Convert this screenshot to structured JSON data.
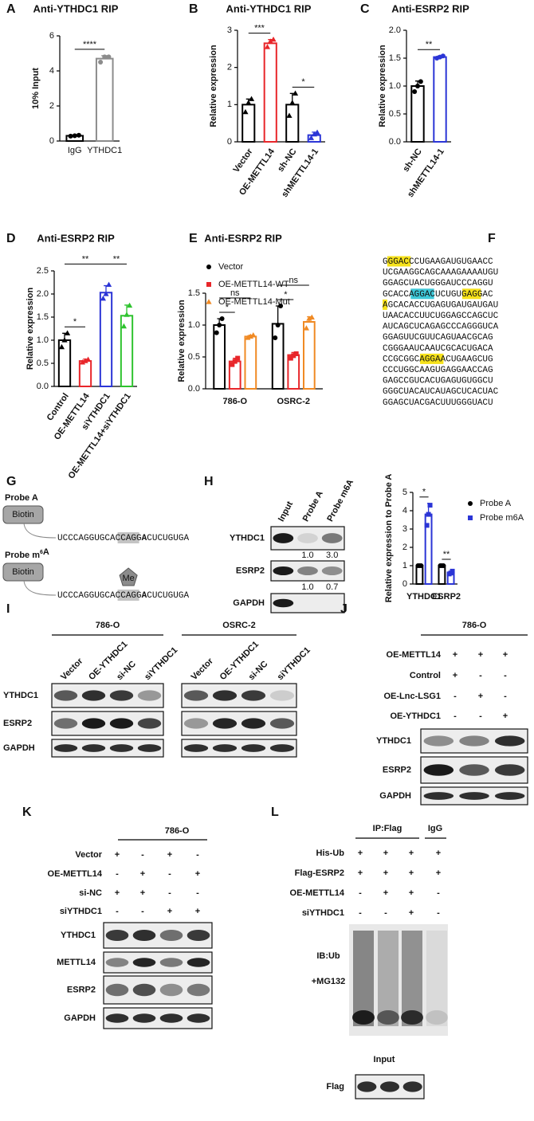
{
  "chart_data": [
    {
      "type": "bar",
      "label": "A",
      "title": "Anti-YTHDC1 RIP",
      "ylabel": "10% Input",
      "categories": [
        "IgG",
        "YTHDC1"
      ],
      "values": [
        0.3,
        4.7
      ],
      "errors": [
        0.03,
        0.17
      ],
      "points": [
        [
          0.28,
          0.3,
          0.33
        ],
        [
          4.5,
          4.8,
          4.8
        ]
      ],
      "colors": [
        "#000000",
        "#8c8c8c"
      ],
      "marker": "circle",
      "ylim": [
        0,
        6
      ],
      "yticks": [
        0,
        2,
        4,
        6
      ],
      "significance": [
        {
          "pair": [
            0,
            1
          ],
          "label": "****"
        }
      ]
    },
    {
      "type": "bar",
      "label": "B",
      "title": "Anti-YTHDC1 RIP",
      "ylabel": "Relative expression",
      "categories": [
        "Vector",
        "OE-METTL14",
        "sh-NC",
        "shMETTL14-1"
      ],
      "values": [
        1.0,
        2.65,
        1.0,
        0.18
      ],
      "errors": [
        0.15,
        0.1,
        0.3,
        0.08
      ],
      "points": [
        [
          0.8,
          1.05,
          1.15
        ],
        [
          2.55,
          2.7,
          2.75
        ],
        [
          0.7,
          1.05,
          1.3
        ],
        [
          0.1,
          0.2,
          0.25
        ]
      ],
      "colors": [
        "#000000",
        "#e8262a",
        "#000000",
        "#2b35d6"
      ],
      "marker": "triangle",
      "rotated_labels": true,
      "ylim": [
        0,
        3
      ],
      "yticks": [
        0,
        1,
        2,
        3
      ],
      "significance": [
        {
          "pair": [
            0,
            1
          ],
          "label": "***"
        },
        {
          "pair": [
            2,
            3
          ],
          "label": "*"
        }
      ]
    },
    {
      "type": "bar",
      "label": "C",
      "title": "Anti-ESRP2 RIP",
      "ylabel": "Relative expression",
      "categories": [
        "sh-NC",
        "shMETTL14-1"
      ],
      "values": [
        1.0,
        1.52
      ],
      "errors": [
        0.09,
        0.02
      ],
      "points": [
        [
          0.9,
          1.0,
          1.08
        ],
        [
          1.5,
          1.52,
          1.54
        ]
      ],
      "colors": [
        "#000000",
        "#2b35d6"
      ],
      "marker": "circle",
      "rotated_labels": true,
      "ylim": [
        0,
        2
      ],
      "yticks": [
        {
          "value": 0,
          "label": "0.0"
        },
        {
          "value": 0.5,
          "label": "0.5"
        },
        {
          "value": 1,
          "label": "1.0"
        },
        {
          "value": 1.5,
          "label": "1.5"
        },
        {
          "value": 2,
          "label": "2.0"
        }
      ],
      "significance": [
        {
          "pair": [
            0,
            1
          ],
          "label": "**"
        }
      ]
    },
    {
      "type": "bar",
      "label": "D",
      "title": "Anti-ESRP2 RIP",
      "ylabel": "Relative expression",
      "categories": [
        "Control",
        "OE-METTL14",
        "siYTHDC1",
        "OE-METTL14+siYTHDC1"
      ],
      "values": [
        1.0,
        0.55,
        2.03,
        1.53
      ],
      "errors": [
        0.15,
        0.04,
        0.15,
        0.23
      ],
      "points": [
        [
          0.85,
          1.0,
          1.15
        ],
        [
          0.52,
          0.55,
          0.58
        ],
        [
          1.9,
          2.0,
          2.2
        ],
        [
          1.3,
          1.55,
          1.75
        ]
      ],
      "colors": [
        "#000000",
        "#e8262a",
        "#2b35d6",
        "#2fc32f"
      ],
      "marker": "triangle",
      "rotated_labels": true,
      "ylim": [
        0,
        2.5
      ],
      "yticks": [
        {
          "value": 0,
          "label": "0.0"
        },
        {
          "value": 0.5,
          "label": "0.5"
        },
        {
          "value": 1,
          "label": "1.0"
        },
        {
          "value": 1.5,
          "label": "1.5"
        },
        {
          "value": 2,
          "label": "2.0"
        },
        {
          "value": 2.5,
          "label": "2.5"
        }
      ],
      "significance": [
        {
          "pair": [
            0,
            1
          ],
          "label": "*"
        },
        {
          "pair": [
            0,
            2
          ],
          "label": "**"
        },
        {
          "pair": [
            2,
            3
          ],
          "label": "**"
        }
      ]
    },
    {
      "type": "bar",
      "label": "E",
      "title": "Anti-ESRP2 RIP",
      "ylabel": "Relative expression",
      "categories": [
        "786-O",
        "OSRC-2"
      ],
      "series": [
        {
          "name": "Vector",
          "color": "#000000",
          "marker": "circle",
          "values": [
            1.0,
            1.02
          ],
          "errors": [
            0.1,
            0.28
          ],
          "points": [
            [
              0.88,
              1.0,
              1.1
            ],
            [
              0.8,
              1.0,
              1.3
            ]
          ]
        },
        {
          "name": "OE-METTL14-WT",
          "color": "#e8262a",
          "marker": "square",
          "values": [
            0.43,
            0.53
          ],
          "errors": [
            0.05,
            0.04
          ],
          "points": [
            [
              0.38,
              0.43,
              0.48
            ],
            [
              0.48,
              0.52,
              0.55
            ]
          ]
        },
        {
          "name": "OE-METTL14-Mut",
          "color": "#f08a24",
          "marker": "triangle",
          "values": [
            0.82,
            1.05
          ],
          "errors": [
            0.02,
            0.08
          ],
          "points": [
            [
              0.8,
              0.82,
              0.84
            ],
            [
              0.95,
              1.1,
              1.12
            ]
          ]
        }
      ],
      "legend": "top",
      "ylim": [
        0,
        1.5
      ],
      "yticks": [
        {
          "value": 0,
          "label": "0.0"
        },
        {
          "value": 0.5,
          "label": "0.5"
        },
        {
          "value": 1,
          "label": "1.0"
        },
        {
          "value": 1.5,
          "label": "1.5"
        }
      ],
      "significance": [
        {
          "group": 0,
          "pair": [
            0,
            1
          ],
          "label": "*"
        },
        {
          "group": 0,
          "pair": [
            0,
            2
          ],
          "label": "ns"
        },
        {
          "group": 1,
          "pair": [
            0,
            1
          ],
          "label": "*"
        },
        {
          "group": 1,
          "pair": [
            0,
            2
          ],
          "label": "ns"
        }
      ]
    },
    {
      "type": "bar",
      "ylabel": "Relative expression to Probe A",
      "categories": [
        "YTHDC1",
        "ESRP2"
      ],
      "series": [
        {
          "name": "Probe A",
          "color": "#000000",
          "marker": "circle",
          "values": [
            1.0,
            1.0
          ],
          "errors": [
            0,
            0
          ],
          "points": [
            [
              1,
              1,
              1
            ],
            [
              1,
              1,
              1
            ]
          ]
        },
        {
          "name": "Probe m6A",
          "color": "#2b35d6",
          "marker": "square",
          "values": [
            3.8,
            0.6
          ],
          "errors": [
            0.6,
            0.07
          ],
          "points": [
            [
              3.2,
              3.8,
              4.3
            ],
            [
              0.55,
              0.6,
              0.7
            ]
          ]
        }
      ],
      "legend": "right",
      "ylim": [
        0,
        5
      ],
      "yticks": [
        0,
        1,
        2,
        3,
        4,
        5
      ],
      "significance": [
        {
          "group": 0,
          "pair": [
            0,
            1
          ],
          "label": "*"
        },
        {
          "group": 1,
          "pair": [
            0,
            1
          ],
          "label": "**"
        }
      ]
    }
  ],
  "sequence": {
    "label": "F",
    "lines": [
      [
        {
          "text": "G"
        },
        {
          "text": "GGACC",
          "highlight": "#f6e21b"
        },
        {
          "text": "CUGAAGAUGUGAACC"
        }
      ],
      [
        {
          "text": "UCGAAGGCAGCAAAGAAAAUGU"
        }
      ],
      [
        {
          "text": "GGAGCUACUGGGAUCCCAGGU"
        }
      ],
      [
        {
          "text": "GCACCA"
        },
        {
          "text": "GGACU",
          "highlight": "#3ec8d8"
        },
        {
          "text": "CUGUGA"
        },
        {
          "text": "GGAC",
          "highlight": "#f6e21b"
        }
      ],
      [
        {
          "text": "A",
          "highlight": "#f6e21b"
        },
        {
          "text": "GCACACCUGAGUGAUGAUGAU"
        }
      ],
      [
        {
          "text": "UAACACCUUCUGGAGCCAGCUC"
        }
      ],
      [
        {
          "text": "AUCAGCUCAGAGCCCAGGGUCA"
        }
      ],
      [
        {
          "text": "GGAGUUCGUUCAGUAACGCAG"
        }
      ],
      [
        {
          "text": "CGGGAAUCAAUCGCACUGACA"
        }
      ],
      [
        {
          "text": "CCGCGGCA"
        },
        {
          "text": "GGAAC",
          "highlight": "#f6e21b"
        },
        {
          "text": "UGAAGCUG"
        }
      ],
      [
        {
          "text": "CCCUGGCAAGUGAGGAACCAG"
        }
      ],
      [
        {
          "text": "GAGCCGUCACUGAGUGUGGCU"
        }
      ],
      [
        {
          "text": "GGGCUACAUCAUAGCUCACUAC"
        }
      ],
      [
        {
          "text": "GGAGCUACGACUUUGGGUACU"
        }
      ]
    ]
  },
  "probe_diagram": {
    "label": "G",
    "probes": [
      {
        "name": [
          {
            "text": "Probe A"
          }
        ],
        "tag": "Biotin",
        "sequence": [
          {
            "text": "UCCCAGGUGCACCA"
          },
          {
            "text": "GG",
            "shade": true
          },
          {
            "text": "A",
            "shade": true,
            "bold": true
          },
          {
            "text": "CU",
            "shade": true
          },
          {
            "text": "CUGUGA"
          }
        ]
      },
      {
        "name": [
          {
            "text": "Probe m"
          },
          {
            "text": "6",
            "sup": true
          },
          {
            "text": "A"
          }
        ],
        "tag": "Biotin",
        "modification": "Me",
        "sequence": [
          {
            "text": "UCCCAGGUGCACCA"
          },
          {
            "text": "GG",
            "shade": true
          },
          {
            "text": "A",
            "shade": true,
            "bold": true
          },
          {
            "text": "CU",
            "shade": true
          },
          {
            "text": "CUGUGA"
          }
        ]
      }
    ]
  },
  "pulldown": {
    "label": "H",
    "lanes": [
      "Input",
      "Probe A",
      "Probe m6A"
    ],
    "rows": [
      "YTHDC1",
      "ESRP2",
      "GAPDH"
    ],
    "quant": [
      [
        "1.0",
        "3.0"
      ],
      [
        "1.0",
        "0.7"
      ]
    ]
  },
  "blot_I": {
    "label": "I",
    "groups": [
      {
        "name": "786-O",
        "lanes": [
          "Vector",
          "OE-YTHDC1",
          "si-NC",
          "siYTHDC1"
        ]
      },
      {
        "name": "OSRC-2",
        "lanes": [
          "Vector",
          "OE-YTHDC1",
          "si-NC",
          "siYTHDC1"
        ]
      }
    ],
    "rows": [
      "YTHDC1",
      "ESRP2",
      "GAPDH"
    ]
  },
  "blot_J": {
    "label": "J",
    "header": "786-O",
    "conditions": [
      {
        "name": "OE-METTL14",
        "signs": [
          "+",
          "+",
          "+"
        ]
      },
      {
        "name": "Control",
        "signs": [
          "+",
          "-",
          "-"
        ]
      },
      {
        "name": "OE-Lnc-LSG1",
        "signs": [
          "-",
          "+",
          "-"
        ]
      },
      {
        "name": "OE-YTHDC1",
        "signs": [
          "-",
          "-",
          "+"
        ]
      }
    ],
    "rows": [
      "YTHDC1",
      "ESRP2",
      "GAPDH"
    ]
  },
  "blot_K": {
    "label": "K",
    "header": "786-O",
    "conditions": [
      {
        "name": "Vector",
        "signs": [
          "+",
          "-",
          "+",
          "-"
        ]
      },
      {
        "name": "OE-METTL14",
        "signs": [
          "-",
          "+",
          "-",
          "+"
        ]
      },
      {
        "name": "si-NC",
        "signs": [
          "+",
          "+",
          "-",
          "-"
        ]
      },
      {
        "name": "siYTHDC1",
        "signs": [
          "-",
          "-",
          "+",
          "+"
        ]
      }
    ],
    "rows": [
      "YTHDC1",
      "METTL14",
      "ESRP2",
      "GAPDH"
    ]
  },
  "blot_L": {
    "label": "L",
    "headers": [
      "IP:Flag",
      "IgG"
    ],
    "conditions": [
      {
        "name": "His-Ub",
        "signs": [
          "+",
          "+",
          "+",
          "+"
        ]
      },
      {
        "name": "Flag-ESRP2",
        "signs": [
          "+",
          "+",
          "+",
          "+"
        ]
      },
      {
        "name": "OE-METTL14",
        "signs": [
          "-",
          "+",
          "+",
          "-"
        ]
      },
      {
        "name": "siYTHDC1",
        "signs": [
          "-",
          "-",
          "+",
          "-"
        ]
      }
    ],
    "blot_labels": [
      "IB:Ub",
      "+MG132"
    ],
    "input_label": "Input",
    "input_rows": [
      "Flag"
    ]
  }
}
